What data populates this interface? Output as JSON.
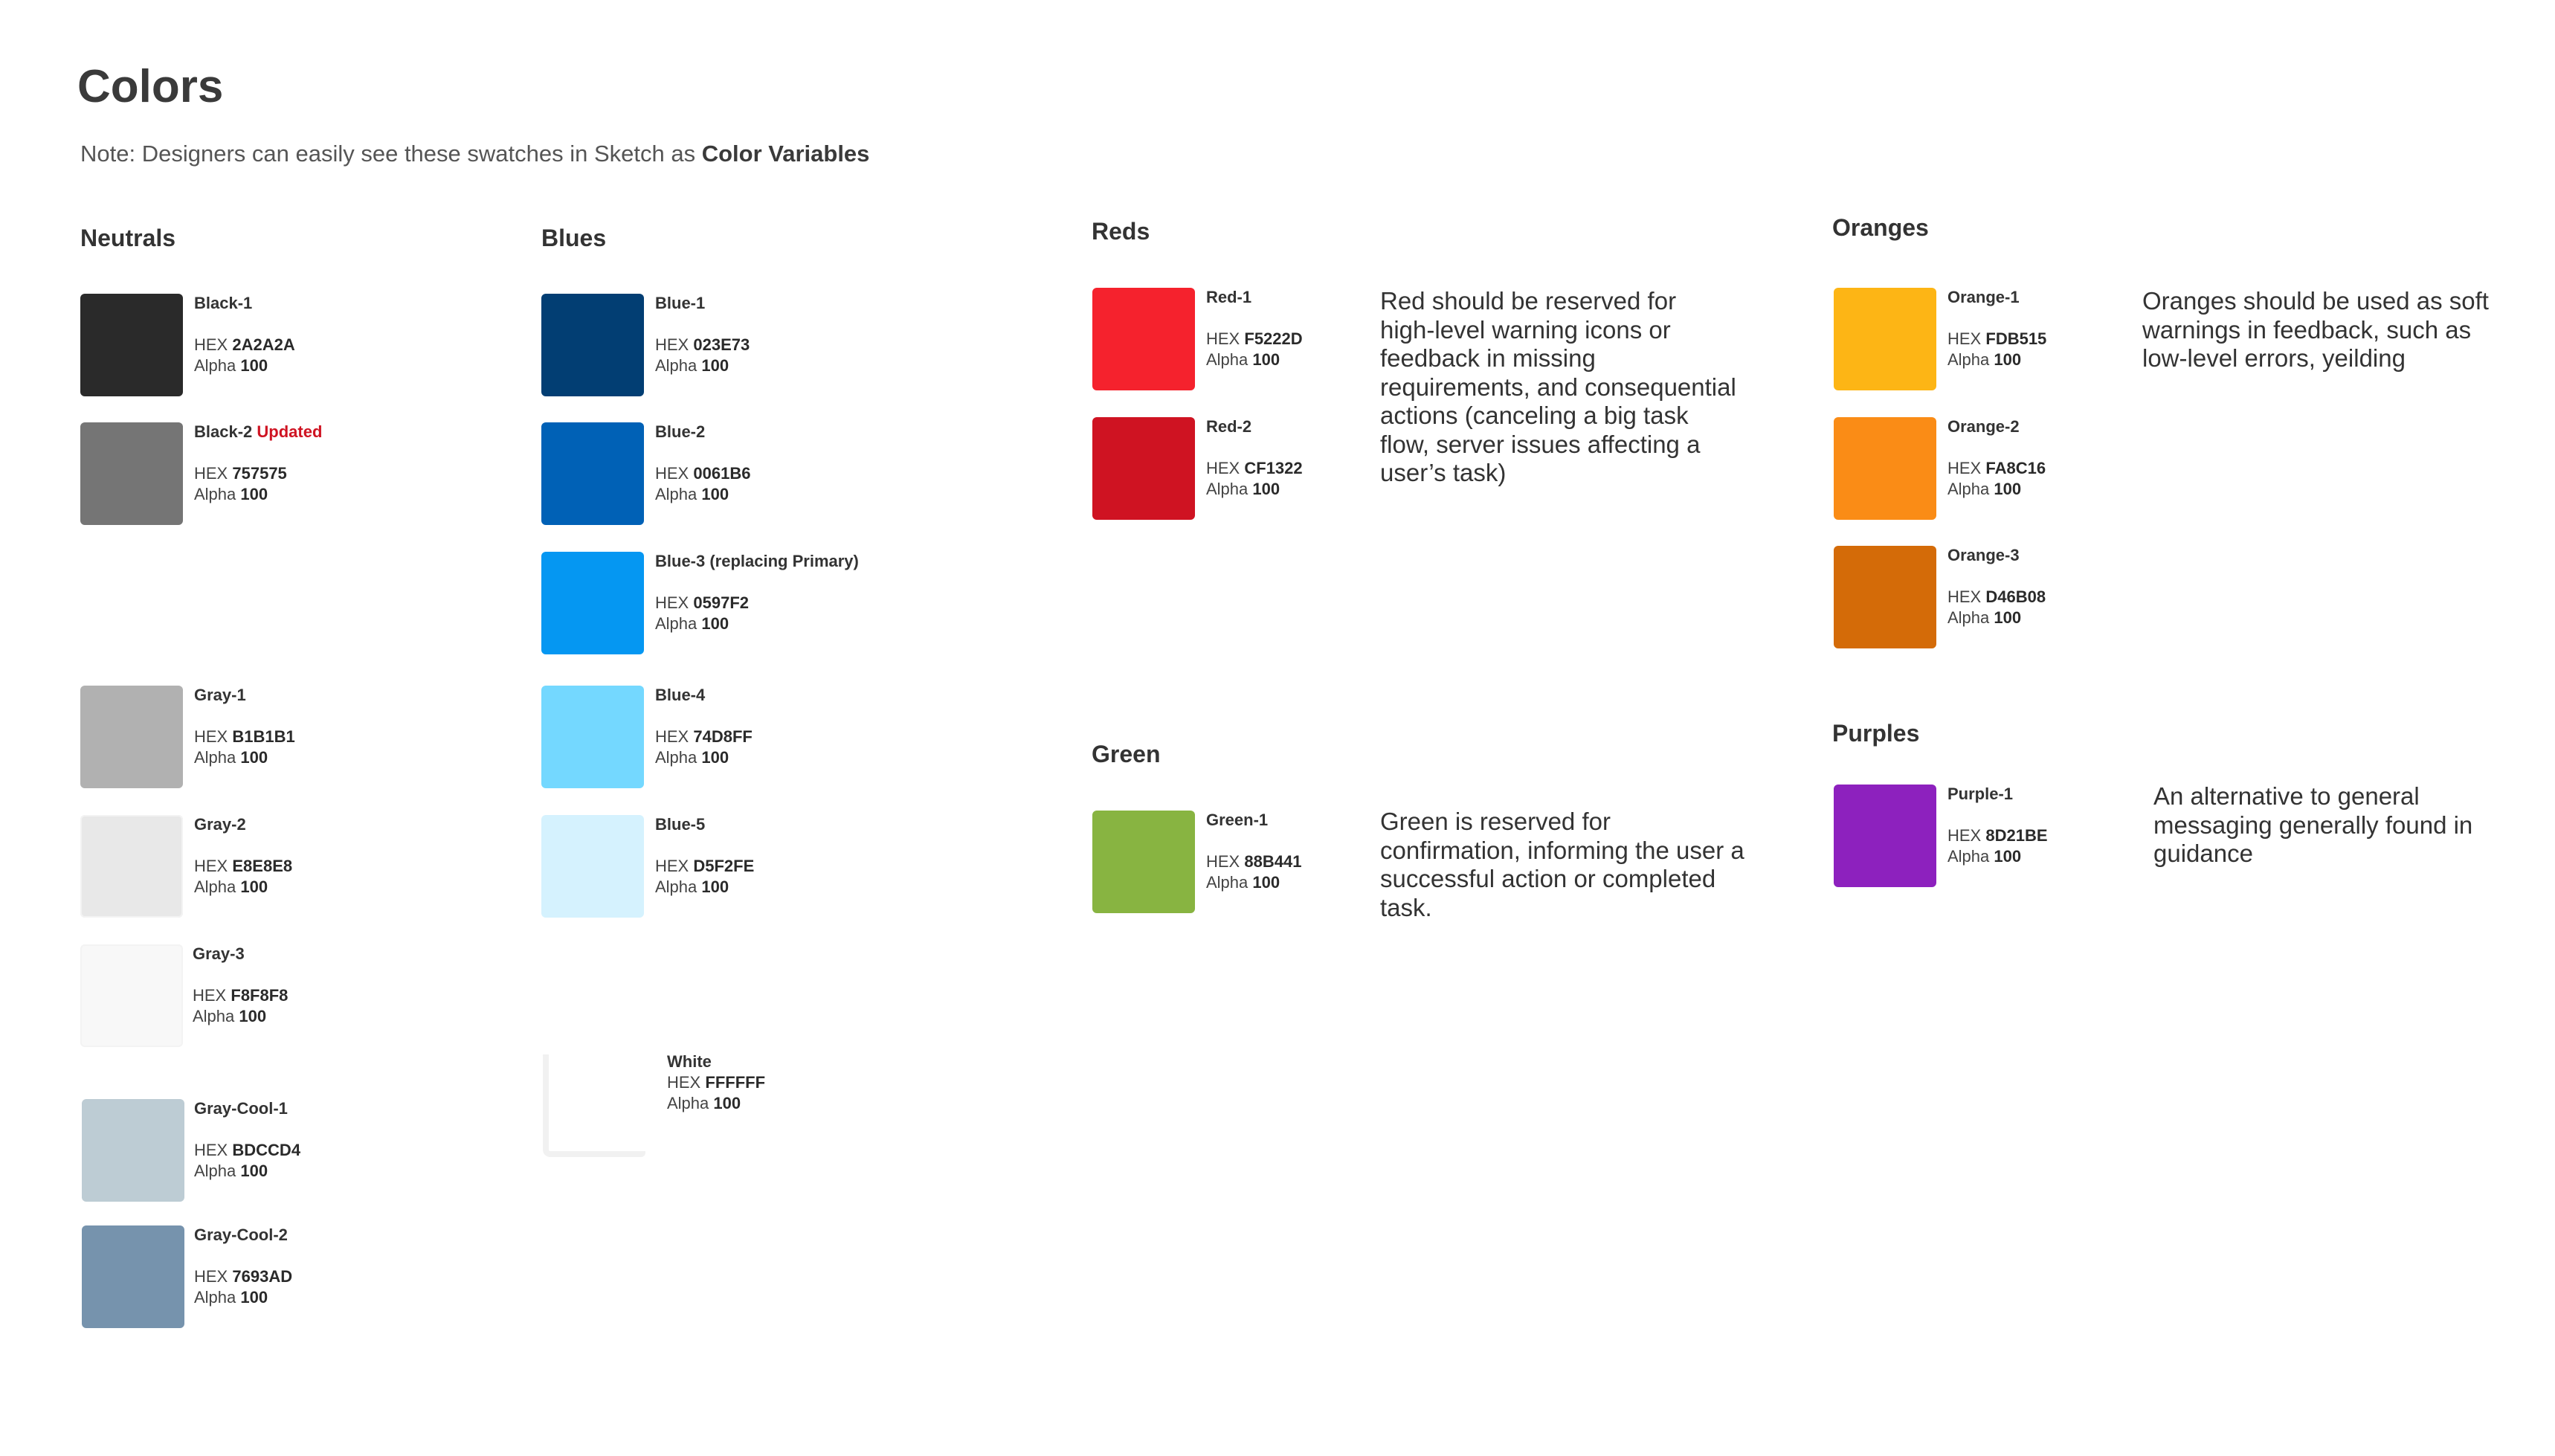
{
  "title": "Colors",
  "note": {
    "prefix": "Note: Designers can easily see these swatches in Sketch as ",
    "emphasis": "Color Variables"
  },
  "labels": {
    "hex": "HEX",
    "alpha": "Alpha"
  },
  "sections": {
    "neutrals": "Neutrals",
    "blues": "Blues",
    "reds": "Reds",
    "green": "Green",
    "oranges": "Oranges",
    "purples": "Purples"
  },
  "colors": {
    "black1": {
      "name": "Black-1",
      "hex": "2A2A2A",
      "alpha": "100",
      "color": "#2A2A2A"
    },
    "black2": {
      "name": "Black-2",
      "badge": "Updated",
      "hex": "757575",
      "alpha": "100",
      "color": "#757575"
    },
    "gray1": {
      "name": "Gray-1",
      "hex": "B1B1B1",
      "alpha": "100",
      "color": "#B1B1B1"
    },
    "gray2": {
      "name": "Gray-2",
      "hex": "E8E8E8",
      "alpha": "100",
      "color": "#E8E8E8"
    },
    "gray3": {
      "name": "Gray-3",
      "hex": "F8F8F8",
      "alpha": "100",
      "color": "#F8F8F8"
    },
    "graycool1": {
      "name": "Gray-Cool-1",
      "hex": "BDCCD4",
      "alpha": "100",
      "color": "#BDCCD4"
    },
    "graycool2": {
      "name": "Gray-Cool-2",
      "hex": "7693AD",
      "alpha": "100",
      "color": "#7693AD"
    },
    "blue1": {
      "name": "Blue-1",
      "hex": "023E73",
      "alpha": "100",
      "color": "#023E73"
    },
    "blue2": {
      "name": "Blue-2",
      "hex": "0061B6",
      "alpha": "100",
      "color": "#0061B6"
    },
    "blue3": {
      "name": "Blue-3 (replacing Primary)",
      "hex": "0597F2",
      "alpha": "100",
      "color": "#0597F2"
    },
    "blue4": {
      "name": "Blue-4",
      "hex": "74D8FF",
      "alpha": "100",
      "color": "#74D8FF"
    },
    "blue5": {
      "name": "Blue-5",
      "hex": "D5F2FE",
      "alpha": "100",
      "color": "#D5F2FE"
    },
    "white": {
      "name": "White",
      "hex": "FFFFFF",
      "alpha": "100",
      "color": "#FFFFFF"
    },
    "red1": {
      "name": "Red-1",
      "hex": "F5222D",
      "alpha": "100",
      "color": "#F5222D"
    },
    "red2": {
      "name": "Red-2",
      "hex": "CF1322",
      "alpha": "100",
      "color": "#CF1322"
    },
    "green1": {
      "name": "Green-1",
      "hex": "88B441",
      "alpha": "100",
      "color": "#88B441"
    },
    "orange1": {
      "name": "Orange-1",
      "hex": "FDB515",
      "alpha": "100",
      "color": "#FDB515"
    },
    "orange2": {
      "name": "Orange-2",
      "hex": "FA8C16",
      "alpha": "100",
      "color": "#FA8C16"
    },
    "orange3": {
      "name": "Orange-3",
      "hex": "D46B08",
      "alpha": "100",
      "color": "#D46B08"
    },
    "purple1": {
      "name": "Purple-1",
      "hex": "8D21BE",
      "alpha": "100",
      "color": "#8D21BE"
    }
  },
  "descriptions": {
    "reds": "Red should be reserved for high-level warning icons or feedback in missing requirements, and consequential actions (canceling a big task flow, server issues affecting a user’s task)",
    "green": "Green is reserved for confirmation, informing the user a successful action or completed task.",
    "oranges": "Oranges should be used as soft warnings in feedback, such as low-level errors, yeilding",
    "purples": "An alternative to general messaging generally found in guidance"
  }
}
